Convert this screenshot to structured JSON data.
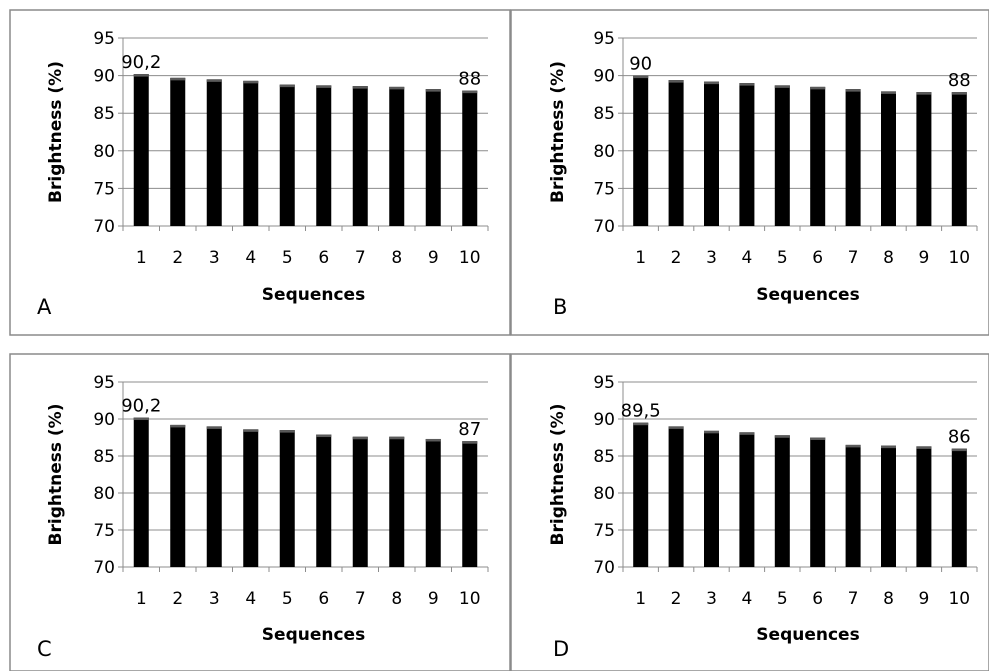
{
  "chart_data": [
    {
      "type": "bar",
      "panel_label": "A",
      "categories": [
        "1",
        "2",
        "3",
        "4",
        "5",
        "6",
        "7",
        "8",
        "9",
        "10"
      ],
      "values": [
        90.2,
        89.7,
        89.5,
        89.3,
        88.8,
        88.7,
        88.6,
        88.5,
        88.2,
        88.0
      ],
      "xlabel": "Sequences",
      "ylabel": "Brightness (%)",
      "ylim": [
        70,
        95
      ],
      "yticks": [
        "70",
        "75",
        "80",
        "85",
        "90",
        "95"
      ],
      "data_labels": [
        {
          "index": 0,
          "text": "90,2"
        },
        {
          "index": 9,
          "text": "88"
        }
      ],
      "grid": true
    },
    {
      "type": "bar",
      "panel_label": "B",
      "categories": [
        "1",
        "2",
        "3",
        "4",
        "5",
        "6",
        "7",
        "8",
        "9",
        "10"
      ],
      "values": [
        90.0,
        89.4,
        89.2,
        89.0,
        88.7,
        88.5,
        88.2,
        87.9,
        87.8,
        87.8
      ],
      "xlabel": "Sequences",
      "ylabel": "Brightness (%)",
      "ylim": [
        70,
        95
      ],
      "yticks": [
        "70",
        "75",
        "80",
        "85",
        "90",
        "95"
      ],
      "data_labels": [
        {
          "index": 0,
          "text": "90"
        },
        {
          "index": 9,
          "text": "88"
        }
      ],
      "grid": true
    },
    {
      "type": "bar",
      "panel_label": "C",
      "categories": [
        "1",
        "2",
        "3",
        "4",
        "5",
        "6",
        "7",
        "8",
        "9",
        "10"
      ],
      "values": [
        90.2,
        89.2,
        89.0,
        88.6,
        88.5,
        87.9,
        87.6,
        87.6,
        87.3,
        87.0
      ],
      "xlabel": "Sequences",
      "ylabel": "Brightness (%)",
      "ylim": [
        70,
        95
      ],
      "yticks": [
        "70",
        "75",
        "80",
        "85",
        "90",
        "95"
      ],
      "data_labels": [
        {
          "index": 0,
          "text": "90,2"
        },
        {
          "index": 9,
          "text": "87"
        }
      ],
      "grid": true
    },
    {
      "type": "bar",
      "panel_label": "D",
      "categories": [
        "1",
        "2",
        "3",
        "4",
        "5",
        "6",
        "7",
        "8",
        "9",
        "10"
      ],
      "values": [
        89.5,
        89.0,
        88.4,
        88.2,
        87.8,
        87.5,
        86.5,
        86.4,
        86.3,
        86.0
      ],
      "xlabel": "Sequences",
      "ylabel": "Brightness (%)",
      "ylim": [
        70,
        95
      ],
      "yticks": [
        "70",
        "75",
        "80",
        "85",
        "90",
        "95"
      ],
      "data_labels": [
        {
          "index": 0,
          "text": "89,5"
        },
        {
          "index": 9,
          "text": "86"
        }
      ],
      "grid": true
    }
  ]
}
